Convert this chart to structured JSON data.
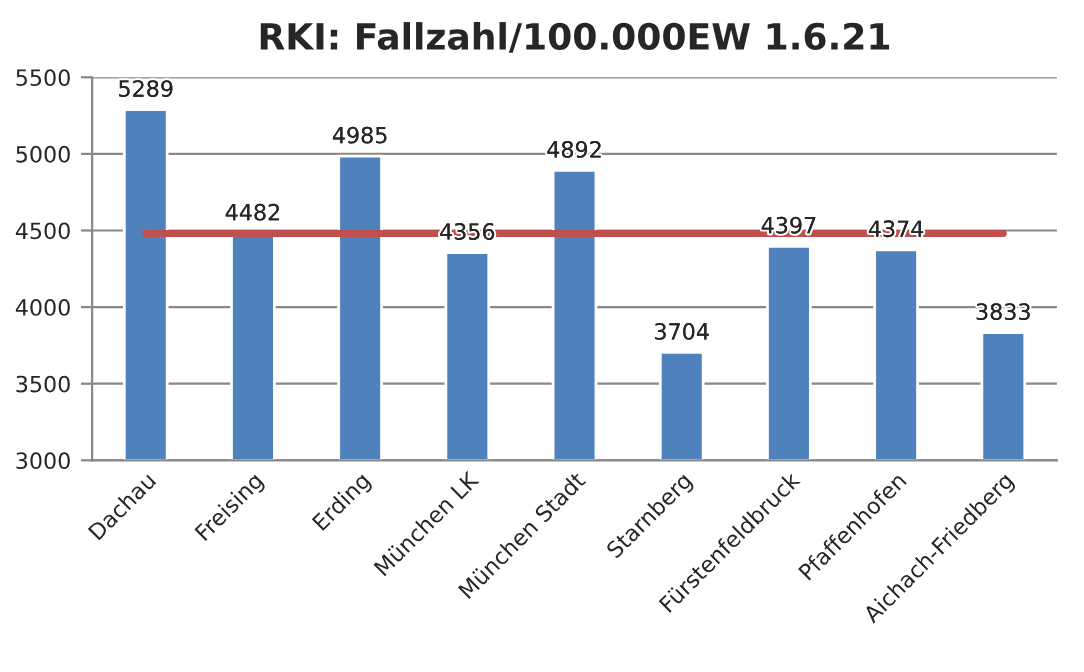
{
  "chart_data": {
    "type": "bar",
    "title": "RKI: Fallzahl/100.000EW 1.6.21",
    "categories": [
      "Dachau",
      "Freising",
      "Erding",
      "München LK",
      "München Stadt",
      "Starnberg",
      "Fürstenfeldbruck",
      "Pfaffenhofen",
      "Aichach-Friedberg"
    ],
    "series": [
      {
        "color": "#4f81bd",
        "values": [
          5289,
          4482,
          4985,
          4356,
          4892,
          3704,
          4397,
          4374,
          3833
        ],
        "value_labels": [
          "5289",
          "4482",
          "4985",
          "4356",
          "4892",
          "3704",
          "4397",
          "4374",
          "3833"
        ]
      },
      {
        "type": "line",
        "color": "#c0504d",
        "values": [
          4480,
          4480,
          4480,
          4480,
          4480,
          4480,
          4480,
          4480,
          4480
        ]
      }
    ],
    "ylim": [
      3000,
      5500
    ],
    "yticks": [
      3000,
      3500,
      4000,
      4500,
      5000,
      5500
    ],
    "grid": "y",
    "legend": false,
    "marker": "none",
    "line_style": "solid"
  }
}
